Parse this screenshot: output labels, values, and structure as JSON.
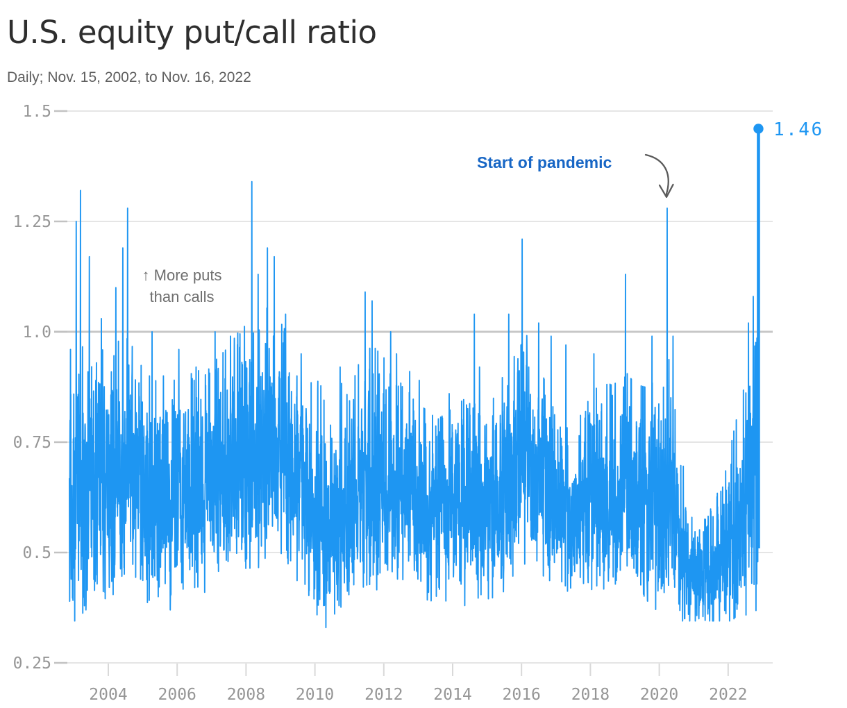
{
  "chart_data": {
    "type": "line",
    "title": "U.S. equity put/call ratio",
    "subtitle": "Daily; Nov. 15, 2002, to Nov. 16, 2022",
    "x_axis": {
      "range": [
        2002.87,
        2022.88
      ],
      "ticks": [
        {
          "label": "2004",
          "year": 2004
        },
        {
          "label": "2006",
          "year": 2006
        },
        {
          "label": "2008",
          "year": 2008
        },
        {
          "label": "2010",
          "year": 2010
        },
        {
          "label": "2012",
          "year": 2012
        },
        {
          "label": "2014",
          "year": 2014
        },
        {
          "label": "2016",
          "year": 2016
        },
        {
          "label": "2018",
          "year": 2018
        },
        {
          "label": "2020",
          "year": 2020
        },
        {
          "label": "2022",
          "year": 2022
        }
      ]
    },
    "y_axis": {
      "range": [
        0.25,
        1.5
      ],
      "emphasized_value": 1.0,
      "ticks": [
        {
          "label": "1.5",
          "value": 1.5
        },
        {
          "label": "1.25",
          "value": 1.25
        },
        {
          "label": "1.0",
          "value": 1.0
        },
        {
          "label": "0.75",
          "value": 0.75
        },
        {
          "label": "0.5",
          "value": 0.5
        },
        {
          "label": "0.25",
          "value": 0.25
        }
      ]
    },
    "series": {
      "name": "U.S. equity put/call ratio (daily)",
      "points_per_year": 252,
      "baseline": [
        [
          2002.87,
          0.6
        ],
        [
          2003.0,
          0.63
        ],
        [
          2003.5,
          0.66
        ],
        [
          2004.0,
          0.66
        ],
        [
          2004.6,
          0.7
        ],
        [
          2005.1,
          0.63
        ],
        [
          2005.6,
          0.62
        ],
        [
          2006.2,
          0.64
        ],
        [
          2007.0,
          0.66
        ],
        [
          2007.6,
          0.7
        ],
        [
          2008.2,
          0.74
        ],
        [
          2008.9,
          0.73
        ],
        [
          2009.3,
          0.7
        ],
        [
          2009.9,
          0.63
        ],
        [
          2010.35,
          0.57
        ],
        [
          2010.9,
          0.63
        ],
        [
          2011.6,
          0.67
        ],
        [
          2012.1,
          0.66
        ],
        [
          2012.6,
          0.63
        ],
        [
          2013.1,
          0.6
        ],
        [
          2013.6,
          0.58
        ],
        [
          2014.2,
          0.6
        ],
        [
          2014.8,
          0.62
        ],
        [
          2015.3,
          0.62
        ],
        [
          2015.8,
          0.68
        ],
        [
          2016.15,
          0.72
        ],
        [
          2016.7,
          0.65
        ],
        [
          2017.1,
          0.6
        ],
        [
          2017.6,
          0.58
        ],
        [
          2018.1,
          0.63
        ],
        [
          2018.7,
          0.64
        ],
        [
          2019.05,
          0.67
        ],
        [
          2019.6,
          0.62
        ],
        [
          2020.1,
          0.61
        ],
        [
          2020.3,
          0.66
        ],
        [
          2020.55,
          0.52
        ],
        [
          2020.9,
          0.46
        ],
        [
          2021.4,
          0.45
        ],
        [
          2021.9,
          0.48
        ],
        [
          2022.2,
          0.55
        ],
        [
          2022.6,
          0.62
        ],
        [
          2022.88,
          0.66
        ]
      ],
      "volatility": [
        [
          2002.87,
          0.145
        ],
        [
          2003.4,
          0.115
        ],
        [
          2004.5,
          0.115
        ],
        [
          2005.5,
          0.1
        ],
        [
          2006.5,
          0.1
        ],
        [
          2007.5,
          0.105
        ],
        [
          2008.5,
          0.125
        ],
        [
          2009.5,
          0.105
        ],
        [
          2010.3,
          0.11
        ],
        [
          2011.0,
          0.1
        ],
        [
          2011.7,
          0.115
        ],
        [
          2012.5,
          0.095
        ],
        [
          2013.5,
          0.085
        ],
        [
          2014.5,
          0.095
        ],
        [
          2015.5,
          0.1
        ],
        [
          2016.2,
          0.105
        ],
        [
          2017.2,
          0.075
        ],
        [
          2018.3,
          0.095
        ],
        [
          2019.3,
          0.09
        ],
        [
          2020.25,
          0.115
        ],
        [
          2020.9,
          0.06
        ],
        [
          2021.5,
          0.055
        ],
        [
          2022.0,
          0.08
        ],
        [
          2022.6,
          0.115
        ],
        [
          2022.88,
          0.13
        ]
      ],
      "spikes": [
        [
          2002.9,
          0.96
        ],
        [
          2003.07,
          1.25
        ],
        [
          2003.19,
          1.32
        ],
        [
          2003.45,
          1.17
        ],
        [
          2003.8,
          1.03
        ],
        [
          2004.22,
          1.1
        ],
        [
          2004.42,
          1.19
        ],
        [
          2004.56,
          1.28
        ],
        [
          2005.27,
          1.0
        ],
        [
          2005.6,
          0.9
        ],
        [
          2006.05,
          0.96
        ],
        [
          2006.55,
          0.92
        ],
        [
          2007.1,
          1.0
        ],
        [
          2007.55,
          0.99
        ],
        [
          2008.17,
          1.34
        ],
        [
          2008.35,
          1.13
        ],
        [
          2008.62,
          1.19
        ],
        [
          2008.82,
          1.17
        ],
        [
          2009.15,
          1.04
        ],
        [
          2009.6,
          0.95
        ],
        [
          2010.73,
          0.92
        ],
        [
          2011.46,
          1.09
        ],
        [
          2011.66,
          1.07
        ],
        [
          2012.2,
          1.0
        ],
        [
          2012.37,
          0.95
        ],
        [
          2012.75,
          0.91
        ],
        [
          2013.03,
          0.89
        ],
        [
          2013.9,
          0.86
        ],
        [
          2014.63,
          1.04
        ],
        [
          2014.78,
          0.92
        ],
        [
          2015.63,
          1.04
        ],
        [
          2016.02,
          1.21
        ],
        [
          2016.5,
          1.02
        ],
        [
          2016.86,
          0.99
        ],
        [
          2017.29,
          0.97
        ],
        [
          2018.1,
          0.95
        ],
        [
          2018.6,
          0.88
        ],
        [
          2019.02,
          1.13
        ],
        [
          2019.79,
          0.99
        ],
        [
          2020.23,
          1.28
        ],
        [
          2020.4,
          0.99
        ],
        [
          2022.59,
          1.02
        ],
        [
          2022.73,
          1.08
        ]
      ],
      "dips": [
        [
          2002.93,
          0.44
        ],
        [
          2003.35,
          0.37
        ],
        [
          2003.9,
          0.41
        ],
        [
          2005.45,
          0.4
        ],
        [
          2005.8,
          0.37
        ],
        [
          2006.8,
          0.41
        ],
        [
          2010.25,
          0.38
        ],
        [
          2010.32,
          0.33
        ],
        [
          2013.3,
          0.41
        ],
        [
          2014.35,
          0.38
        ],
        [
          2017.8,
          0.43
        ],
        [
          2020.85,
          0.36
        ],
        [
          2021.15,
          0.35
        ],
        [
          2021.55,
          0.36
        ],
        [
          2021.9,
          0.38
        ]
      ],
      "final_point": {
        "t": 2022.88,
        "value": 1.46,
        "label": "1.46"
      }
    },
    "annotations": {
      "more_puts": {
        "line1": "↑ More puts",
        "line2": "than calls"
      },
      "pandemic": {
        "text": "Start of pandemic",
        "arrow_to": {
          "t": 2020.23,
          "value": 1.28
        }
      }
    },
    "colors": {
      "line": "#1e96f2",
      "grid": "#e5e5e5",
      "grid_emphasis": "#c7c7c7",
      "tick_dash": "#c2c2c2",
      "axis_tick": "#d9d9d9",
      "axis_label": "#969696",
      "title": "#2e2e2e",
      "subtitle": "#5e5e5e",
      "annotation_gray": "#6e6e6e",
      "annotation_blue": "#1766c5",
      "arrow": "#5a5a5a",
      "background": "#ffffff"
    }
  }
}
